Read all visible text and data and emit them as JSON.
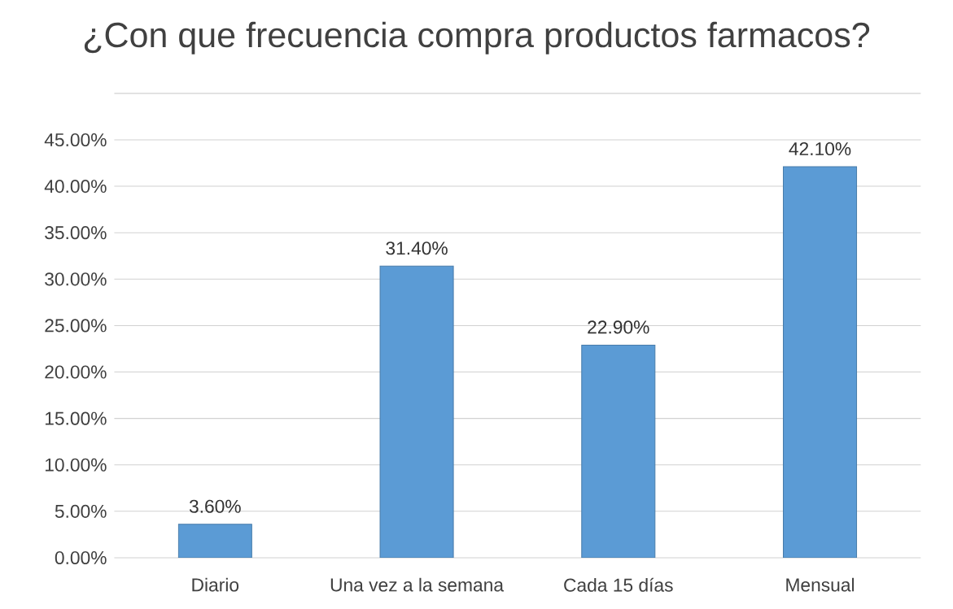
{
  "chart_data": {
    "type": "bar",
    "title": "¿Con que frecuencia compra productos farmacos?",
    "categories": [
      "Diario",
      "Una vez a la semana",
      "Cada 15 días",
      "Mensual"
    ],
    "values": [
      3.6,
      31.4,
      22.9,
      42.1
    ],
    "value_labels": [
      "3.60%",
      "31.40%",
      "22.90%",
      "42.10%"
    ],
    "color": "#5b9bd5",
    "ylim": [
      0,
      50
    ],
    "yticks": [
      {
        "value": 0,
        "label": "0.00%"
      },
      {
        "value": 5,
        "label": "5.00%"
      },
      {
        "value": 10,
        "label": "10.00%"
      },
      {
        "value": 15,
        "label": "15.00%"
      },
      {
        "value": 20,
        "label": "20.00%"
      },
      {
        "value": 25,
        "label": "25.00%"
      },
      {
        "value": 30,
        "label": "30.00%"
      },
      {
        "value": 35,
        "label": "35.00%"
      },
      {
        "value": 40,
        "label": "40.00%"
      },
      {
        "value": 45,
        "label": "45.00%"
      },
      {
        "value": 50,
        "label": null
      }
    ],
    "grid": "y"
  }
}
